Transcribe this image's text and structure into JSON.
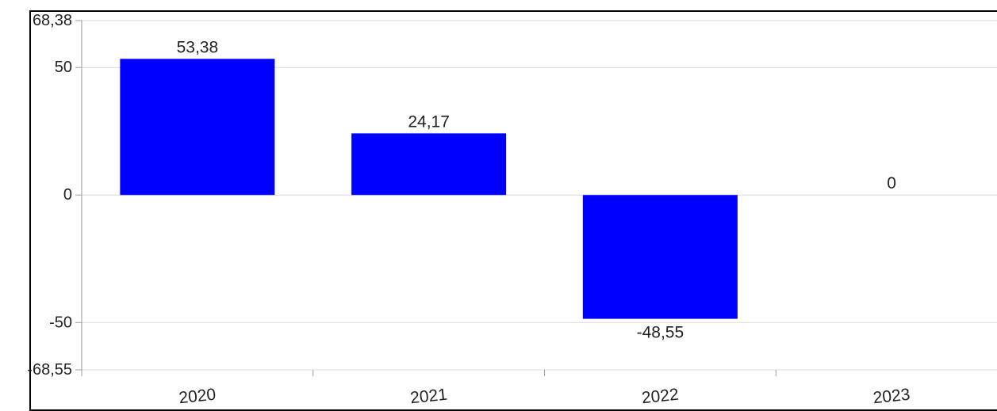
{
  "chart_data": {
    "type": "bar",
    "categories": [
      "2020",
      "2021",
      "2022",
      "2023"
    ],
    "values": [
      53.38,
      24.17,
      -48.55,
      0
    ],
    "data_labels": [
      "53,38",
      "24,17",
      "-48,55",
      "0"
    ],
    "y_ticks": [
      {
        "value": 68.38,
        "label": "68,38"
      },
      {
        "value": 50,
        "label": "50"
      },
      {
        "value": 0,
        "label": "0"
      },
      {
        "value": -50,
        "label": "-50"
      },
      {
        "value": -68.55,
        "label": "-68,55"
      }
    ],
    "ylim": [
      -68.55,
      68.38
    ],
    "title": "",
    "xlabel": "",
    "ylabel": "",
    "bar_color": "#0000ff",
    "grid": true,
    "grid_color": "#d9d9d9",
    "x_label_style": "rotated"
  }
}
